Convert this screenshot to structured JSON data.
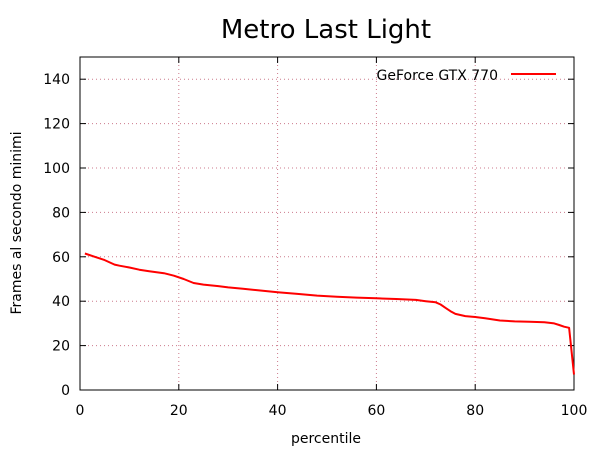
{
  "chart_data": {
    "type": "line",
    "title": "Metro Last Light",
    "xlabel": "percentile",
    "ylabel": "Frames al secondo minimi",
    "xlim": [
      0,
      100
    ],
    "ylim": [
      0,
      150
    ],
    "xticks": [
      "0",
      "20",
      "40",
      "60",
      "80",
      "100"
    ],
    "yticks": [
      "0",
      "20",
      "40",
      "60",
      "80",
      "100",
      "120",
      "140"
    ],
    "grid": true,
    "legend": {
      "placement": "top-right"
    },
    "series": [
      {
        "name": "GeForce GTX 770",
        "color": "#ff0000",
        "x": [
          1,
          3,
          5,
          7,
          8,
          10,
          12,
          14,
          17,
          19,
          21,
          23,
          25,
          28,
          30,
          33,
          36,
          40,
          44,
          48,
          52,
          56,
          60,
          64,
          68,
          70,
          72,
          73,
          74,
          75,
          76,
          78,
          80,
          82,
          85,
          88,
          91,
          94,
          96,
          97,
          98,
          99,
          100
        ],
        "y": [
          61.5,
          60,
          58.5,
          56.5,
          56,
          55.2,
          54.2,
          53.5,
          52.6,
          51.5,
          50,
          48.2,
          47.5,
          46.8,
          46.2,
          45.6,
          44.9,
          44,
          43.3,
          42.5,
          42,
          41.6,
          41.3,
          41,
          40.6,
          40,
          39.5,
          38.5,
          37,
          35.5,
          34.3,
          33.3,
          32.9,
          32.3,
          31.3,
          30.9,
          30.7,
          30.5,
          30,
          29.3,
          28.5,
          28,
          7
        ]
      }
    ]
  }
}
